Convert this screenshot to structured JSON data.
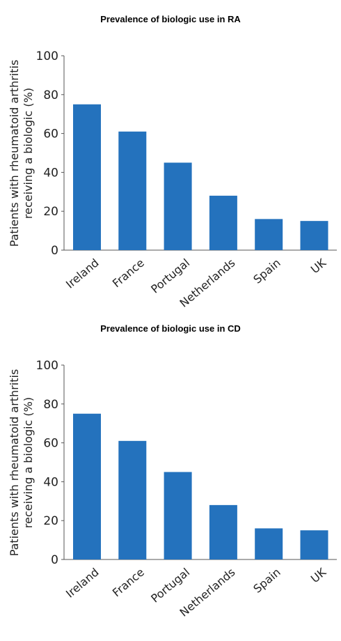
{
  "chart_data": [
    {
      "type": "bar",
      "title": "Prevalence of biologic use in RA",
      "ylabel_lines": [
        "Patients with rheumatoid arthritis",
        "receiving a biologic (%)"
      ],
      "categories": [
        "Ireland",
        "France",
        "Portugal",
        "Netherlands",
        "Spain",
        "UK"
      ],
      "values": [
        75,
        61,
        45,
        28,
        16,
        15
      ],
      "yticks": [
        0,
        20,
        40,
        60,
        80,
        100
      ],
      "ylim": [
        0,
        100
      ],
      "grid": false,
      "color": "#2472bd"
    },
    {
      "type": "bar",
      "title": "Prevalence of biologic use in CD",
      "ylabel_lines": [
        "Patients with rheumatoid arthritis",
        "receiving a biologic (%)"
      ],
      "categories": [
        "Ireland",
        "France",
        "Portugal",
        "Netherlands",
        "Spain",
        "UK"
      ],
      "values": [
        75,
        61,
        45,
        28,
        16,
        15
      ],
      "yticks": [
        0,
        20,
        40,
        60,
        80,
        100
      ],
      "ylim": [
        0,
        100
      ],
      "grid": false,
      "color": "#2472bd"
    }
  ]
}
